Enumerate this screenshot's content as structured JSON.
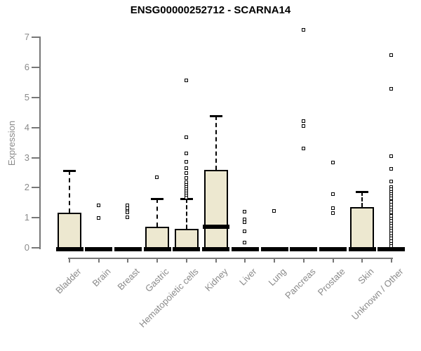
{
  "title": "ENSG00000252712 - SCARNA14",
  "y_axis": {
    "label": "Expression",
    "ticks": [
      "0",
      "1",
      "2",
      "3",
      "4",
      "5",
      "6",
      "7"
    ]
  },
  "colors": {
    "box_fill": "#EDE8D0",
    "box_line": "#000000",
    "axis": "#777777",
    "label_text": "#8a8a8a",
    "title_text": "#000000"
  },
  "chart_data": {
    "type": "boxplot",
    "title": "ENSG00000252712 - SCARNA14",
    "xlabel": "",
    "ylabel": "Expression",
    "ylim": [
      0,
      7
    ],
    "yticks": [
      0,
      1,
      2,
      3,
      4,
      5,
      6,
      7
    ],
    "grid": false,
    "legend": "none",
    "categories": [
      "Bladder",
      "Brain",
      "Breast",
      "Gastric",
      "Hematopoietic cells",
      "Kidney",
      "Liver",
      "Lung",
      "Pancreas",
      "Prostate",
      "Skin",
      "Unknown / Other"
    ],
    "series": [
      {
        "category": "Bladder",
        "q1": 0,
        "median": 0,
        "q3": 1.17,
        "whisker_low": 0,
        "whisker_high": 2.57,
        "outliers": []
      },
      {
        "category": "Brain",
        "q1": 0,
        "median": 0,
        "q3": 0,
        "whisker_low": 0,
        "whisker_high": 0,
        "outliers": [
          1.39,
          0.99
        ]
      },
      {
        "category": "Breast",
        "q1": 0,
        "median": 0,
        "q3": 0,
        "whisker_low": 0,
        "whisker_high": 0,
        "outliers": [
          1.39,
          1.3,
          1.22,
          1.16,
          1.0
        ]
      },
      {
        "category": "Gastric",
        "q1": 0,
        "median": 0,
        "q3": 0.69,
        "whisker_low": 0,
        "whisker_high": 1.64,
        "outliers": [
          2.34
        ]
      },
      {
        "category": "Hematopoietic cells",
        "q1": 0,
        "median": 0,
        "q3": 0.63,
        "whisker_low": 0,
        "whisker_high": 1.63,
        "outliers": [
          5.55,
          3.67,
          3.12,
          2.85,
          2.64,
          2.47,
          2.31,
          2.17,
          2.08,
          2.0,
          1.93,
          1.86,
          1.79,
          1.72,
          1.66
        ]
      },
      {
        "category": "Kidney",
        "q1": 0,
        "median": 0.7,
        "q3": 2.59,
        "whisker_low": 0,
        "whisker_high": 4.38,
        "outliers": []
      },
      {
        "category": "Liver",
        "q1": 0,
        "median": 0,
        "q3": 0,
        "whisker_low": 0,
        "whisker_high": 0,
        "outliers": [
          1.2,
          0.94,
          0.83,
          0.54,
          0.16
        ]
      },
      {
        "category": "Lung",
        "q1": 0,
        "median": 0,
        "q3": 0,
        "whisker_low": 0,
        "whisker_high": 0,
        "outliers": [
          1.21
        ]
      },
      {
        "category": "Pancreas",
        "q1": 0,
        "median": 0,
        "q3": 0,
        "whisker_low": 0,
        "whisker_high": 0,
        "outliers": [
          7.25,
          4.21,
          4.04,
          3.3
        ]
      },
      {
        "category": "Prostate",
        "q1": 0,
        "median": 0,
        "q3": 0,
        "whisker_low": 0,
        "whisker_high": 0,
        "outliers": [
          2.83,
          1.78,
          1.31,
          1.14
        ]
      },
      {
        "category": "Skin",
        "q1": 0,
        "median": 0,
        "q3": 1.35,
        "whisker_low": 0,
        "whisker_high": 1.86,
        "outliers": []
      },
      {
        "category": "Unknown / Other",
        "q1": 0,
        "median": 0,
        "q3": 0,
        "whisker_low": 0,
        "whisker_high": 0,
        "outliers": [
          6.41,
          5.28,
          3.03,
          2.62,
          2.19,
          2.01,
          1.93,
          1.85,
          1.77,
          1.7,
          1.63,
          1.51,
          1.42,
          1.33,
          1.24,
          1.16,
          1.04,
          0.96,
          0.88,
          0.8,
          0.72,
          0.64,
          0.56,
          0.47,
          0.38,
          0.3,
          0.21,
          0.12,
          0.05
        ]
      }
    ]
  }
}
